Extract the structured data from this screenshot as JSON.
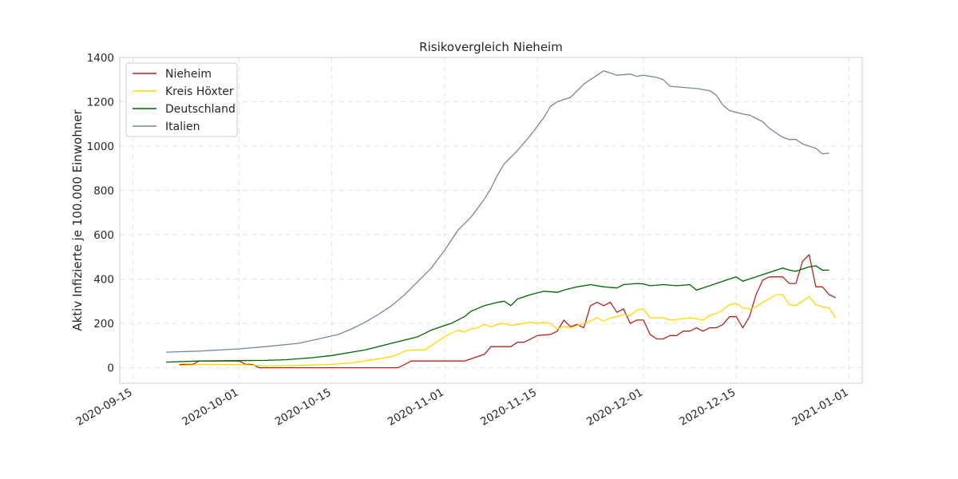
{
  "chart_data": {
    "type": "line",
    "title": "Risikovergleich Nieheim",
    "xlabel": "",
    "ylabel": "Aktiv Infizierte je 100.000 Einwohner",
    "x_ticks": [
      "2020-09-15",
      "2020-10-01",
      "2020-10-15",
      "2020-11-01",
      "2020-11-15",
      "2020-12-01",
      "2020-12-15",
      "2021-01-01"
    ],
    "y_ticks": [
      0,
      200,
      400,
      600,
      800,
      1000,
      1200,
      1400
    ],
    "xlim": [
      "2020-09-13",
      "2021-01-03"
    ],
    "ylim": [
      -70,
      1400
    ],
    "grid": true,
    "legend_position": "top-left",
    "series": [
      {
        "name": "Nieheim",
        "color": "#b22222",
        "points": [
          [
            "2020-09-22",
            15
          ],
          [
            "2020-09-24",
            15
          ],
          [
            "2020-09-25",
            30
          ],
          [
            "2020-10-01",
            30
          ],
          [
            "2020-10-02",
            15
          ],
          [
            "2020-10-03",
            15
          ],
          [
            "2020-10-04",
            0
          ],
          [
            "2020-10-25",
            0
          ],
          [
            "2020-10-27",
            30
          ],
          [
            "2020-11-04",
            30
          ],
          [
            "2020-11-07",
            60
          ],
          [
            "2020-11-08",
            95
          ],
          [
            "2020-11-11",
            95
          ],
          [
            "2020-11-12",
            115
          ],
          [
            "2020-11-13",
            115
          ],
          [
            "2020-11-15",
            145
          ],
          [
            "2020-11-17",
            150
          ],
          [
            "2020-11-18",
            165
          ],
          [
            "2020-11-19",
            215
          ],
          [
            "2020-11-20",
            185
          ],
          [
            "2020-11-21",
            195
          ],
          [
            "2020-11-22",
            180
          ],
          [
            "2020-11-23",
            280
          ],
          [
            "2020-11-24",
            295
          ],
          [
            "2020-11-25",
            280
          ],
          [
            "2020-11-26",
            295
          ],
          [
            "2020-11-27",
            250
          ],
          [
            "2020-11-28",
            265
          ],
          [
            "2020-11-29",
            200
          ],
          [
            "2020-11-30",
            215
          ],
          [
            "2020-12-01",
            215
          ],
          [
            "2020-12-02",
            150
          ],
          [
            "2020-12-03",
            130
          ],
          [
            "2020-12-04",
            130
          ],
          [
            "2020-12-05",
            145
          ],
          [
            "2020-12-06",
            145
          ],
          [
            "2020-12-07",
            165
          ],
          [
            "2020-12-08",
            165
          ],
          [
            "2020-12-09",
            180
          ],
          [
            "2020-12-10",
            165
          ],
          [
            "2020-12-11",
            180
          ],
          [
            "2020-12-12",
            180
          ],
          [
            "2020-12-13",
            195
          ],
          [
            "2020-12-14",
            230
          ],
          [
            "2020-12-15",
            230
          ],
          [
            "2020-12-16",
            180
          ],
          [
            "2020-12-17",
            230
          ],
          [
            "2020-12-18",
            330
          ],
          [
            "2020-12-19",
            395
          ],
          [
            "2020-12-20",
            410
          ],
          [
            "2020-12-22",
            410
          ],
          [
            "2020-12-23",
            380
          ],
          [
            "2020-12-24",
            380
          ],
          [
            "2020-12-25",
            480
          ],
          [
            "2020-12-26",
            510
          ],
          [
            "2020-12-27",
            365
          ],
          [
            "2020-12-28",
            365
          ],
          [
            "2020-12-29",
            330
          ],
          [
            "2020-12-30",
            315
          ]
        ]
      },
      {
        "name": "Kreis Höxter",
        "color": "#ffd700",
        "points": [
          [
            "2020-09-22",
            10
          ],
          [
            "2020-09-24",
            12
          ],
          [
            "2020-09-25",
            15
          ],
          [
            "2020-09-30",
            14
          ],
          [
            "2020-10-02",
            13
          ],
          [
            "2020-10-05",
            8
          ],
          [
            "2020-10-10",
            10
          ],
          [
            "2020-10-15",
            15
          ],
          [
            "2020-10-18",
            22
          ],
          [
            "2020-10-20",
            30
          ],
          [
            "2020-10-22",
            40
          ],
          [
            "2020-10-24",
            50
          ],
          [
            "2020-10-25",
            60
          ],
          [
            "2020-10-26",
            75
          ],
          [
            "2020-10-27",
            80
          ],
          [
            "2020-10-29",
            80
          ],
          [
            "2020-10-30",
            100
          ],
          [
            "2020-11-01",
            140
          ],
          [
            "2020-11-02",
            155
          ],
          [
            "2020-11-03",
            170
          ],
          [
            "2020-11-04",
            160
          ],
          [
            "2020-11-05",
            175
          ],
          [
            "2020-11-06",
            180
          ],
          [
            "2020-11-07",
            195
          ],
          [
            "2020-11-08",
            185
          ],
          [
            "2020-11-09",
            195
          ],
          [
            "2020-11-10",
            200
          ],
          [
            "2020-11-11",
            190
          ],
          [
            "2020-11-12",
            195
          ],
          [
            "2020-11-14",
            205
          ],
          [
            "2020-11-15",
            200
          ],
          [
            "2020-11-16",
            205
          ],
          [
            "2020-11-17",
            200
          ],
          [
            "2020-11-18",
            175
          ],
          [
            "2020-11-19",
            185
          ],
          [
            "2020-11-20",
            180
          ],
          [
            "2020-11-21",
            190
          ],
          [
            "2020-11-22",
            200
          ],
          [
            "2020-11-23",
            210
          ],
          [
            "2020-11-24",
            225
          ],
          [
            "2020-11-25",
            210
          ],
          [
            "2020-11-26",
            225
          ],
          [
            "2020-11-27",
            230
          ],
          [
            "2020-11-28",
            240
          ],
          [
            "2020-11-29",
            235
          ],
          [
            "2020-11-30",
            260
          ],
          [
            "2020-12-01",
            265
          ],
          [
            "2020-12-02",
            225
          ],
          [
            "2020-12-04",
            225
          ],
          [
            "2020-12-05",
            215
          ],
          [
            "2020-12-07",
            220
          ],
          [
            "2020-12-08",
            225
          ],
          [
            "2020-12-10",
            215
          ],
          [
            "2020-12-11",
            235
          ],
          [
            "2020-12-12",
            245
          ],
          [
            "2020-12-13",
            260
          ],
          [
            "2020-12-14",
            285
          ],
          [
            "2020-12-15",
            290
          ],
          [
            "2020-12-16",
            270
          ],
          [
            "2020-12-17",
            265
          ],
          [
            "2020-12-18",
            275
          ],
          [
            "2020-12-19",
            295
          ],
          [
            "2020-12-20",
            310
          ],
          [
            "2020-12-21",
            330
          ],
          [
            "2020-12-22",
            330
          ],
          [
            "2020-12-23",
            285
          ],
          [
            "2020-12-24",
            280
          ],
          [
            "2020-12-25",
            300
          ],
          [
            "2020-12-26",
            320
          ],
          [
            "2020-12-27",
            285
          ],
          [
            "2020-12-28",
            275
          ],
          [
            "2020-12-29",
            270
          ],
          [
            "2020-12-30",
            225
          ]
        ]
      },
      {
        "name": "Deutschland",
        "color": "#006400",
        "points": [
          [
            "2020-09-20",
            25
          ],
          [
            "2020-09-25",
            30
          ],
          [
            "2020-10-01",
            32
          ],
          [
            "2020-10-05",
            33
          ],
          [
            "2020-10-08",
            36
          ],
          [
            "2020-10-12",
            45
          ],
          [
            "2020-10-15",
            55
          ],
          [
            "2020-10-18",
            70
          ],
          [
            "2020-10-20",
            80
          ],
          [
            "2020-10-22",
            95
          ],
          [
            "2020-10-24",
            110
          ],
          [
            "2020-10-26",
            125
          ],
          [
            "2020-10-28",
            140
          ],
          [
            "2020-10-30",
            170
          ],
          [
            "2020-11-01",
            190
          ],
          [
            "2020-11-02",
            200
          ],
          [
            "2020-11-04",
            230
          ],
          [
            "2020-11-05",
            255
          ],
          [
            "2020-11-07",
            280
          ],
          [
            "2020-11-09",
            295
          ],
          [
            "2020-11-10",
            300
          ],
          [
            "2020-11-11",
            280
          ],
          [
            "2020-11-12",
            310
          ],
          [
            "2020-11-14",
            330
          ],
          [
            "2020-11-16",
            345
          ],
          [
            "2020-11-18",
            340
          ],
          [
            "2020-11-19",
            350
          ],
          [
            "2020-11-21",
            365
          ],
          [
            "2020-11-23",
            375
          ],
          [
            "2020-11-25",
            365
          ],
          [
            "2020-11-27",
            360
          ],
          [
            "2020-11-28",
            375
          ],
          [
            "2020-11-30",
            380
          ],
          [
            "2020-12-01",
            378
          ],
          [
            "2020-12-02",
            370
          ],
          [
            "2020-12-04",
            375
          ],
          [
            "2020-12-06",
            370
          ],
          [
            "2020-12-08",
            375
          ],
          [
            "2020-12-09",
            350
          ],
          [
            "2020-12-11",
            370
          ],
          [
            "2020-12-13",
            390
          ],
          [
            "2020-12-15",
            410
          ],
          [
            "2020-12-16",
            390
          ],
          [
            "2020-12-18",
            410
          ],
          [
            "2020-12-20",
            430
          ],
          [
            "2020-12-22",
            450
          ],
          [
            "2020-12-23",
            440
          ],
          [
            "2020-12-24",
            435
          ],
          [
            "2020-12-26",
            455
          ],
          [
            "2020-12-27",
            460
          ],
          [
            "2020-12-28",
            440
          ],
          [
            "2020-12-29",
            440
          ]
        ]
      },
      {
        "name": "Italien",
        "color": "#778899",
        "points": [
          [
            "2020-09-20",
            70
          ],
          [
            "2020-09-25",
            75
          ],
          [
            "2020-10-01",
            85
          ],
          [
            "2020-10-05",
            95
          ],
          [
            "2020-10-10",
            110
          ],
          [
            "2020-10-13",
            130
          ],
          [
            "2020-10-16",
            150
          ],
          [
            "2020-10-18",
            175
          ],
          [
            "2020-10-20",
            205
          ],
          [
            "2020-10-22",
            240
          ],
          [
            "2020-10-24",
            280
          ],
          [
            "2020-10-26",
            330
          ],
          [
            "2020-10-28",
            390
          ],
          [
            "2020-10-30",
            450
          ],
          [
            "2020-11-01",
            530
          ],
          [
            "2020-11-03",
            620
          ],
          [
            "2020-11-05",
            680
          ],
          [
            "2020-11-07",
            760
          ],
          [
            "2020-11-08",
            810
          ],
          [
            "2020-11-09",
            870
          ],
          [
            "2020-11-10",
            920
          ],
          [
            "2020-11-12",
            980
          ],
          [
            "2020-11-14",
            1050
          ],
          [
            "2020-11-16",
            1130
          ],
          [
            "2020-11-17",
            1180
          ],
          [
            "2020-11-18",
            1200
          ],
          [
            "2020-11-20",
            1220
          ],
          [
            "2020-11-22",
            1280
          ],
          [
            "2020-11-24",
            1320
          ],
          [
            "2020-11-25",
            1340
          ],
          [
            "2020-11-26",
            1330
          ],
          [
            "2020-11-27",
            1320
          ],
          [
            "2020-11-29",
            1325
          ],
          [
            "2020-11-30",
            1315
          ],
          [
            "2020-12-01",
            1320
          ],
          [
            "2020-12-03",
            1310
          ],
          [
            "2020-12-04",
            1300
          ],
          [
            "2020-12-05",
            1270
          ],
          [
            "2020-12-07",
            1265
          ],
          [
            "2020-12-09",
            1260
          ],
          [
            "2020-12-11",
            1250
          ],
          [
            "2020-12-12",
            1230
          ],
          [
            "2020-12-13",
            1185
          ],
          [
            "2020-12-14",
            1160
          ],
          [
            "2020-12-16",
            1145
          ],
          [
            "2020-12-17",
            1140
          ],
          [
            "2020-12-19",
            1110
          ],
          [
            "2020-12-20",
            1080
          ],
          [
            "2020-12-22",
            1040
          ],
          [
            "2020-12-23",
            1030
          ],
          [
            "2020-12-24",
            1030
          ],
          [
            "2020-12-25",
            1010
          ],
          [
            "2020-12-27",
            990
          ],
          [
            "2020-12-28",
            965
          ],
          [
            "2020-12-29",
            968
          ]
        ]
      }
    ]
  }
}
